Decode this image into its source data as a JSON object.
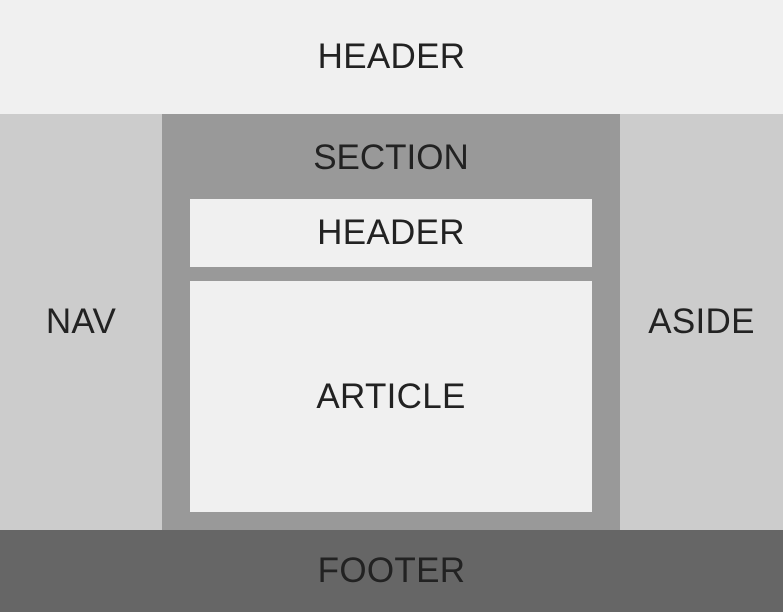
{
  "colors": {
    "light": "#f0f0f0",
    "medium": "#cccccc",
    "section": "#999999",
    "dark": "#666666",
    "text": "#222222"
  },
  "layout": {
    "header": "HEADER",
    "nav": "NAV",
    "section": {
      "label": "SECTION",
      "header": "HEADER",
      "article": "ARTICLE"
    },
    "aside": "ASIDE",
    "footer": "FOOTER"
  }
}
